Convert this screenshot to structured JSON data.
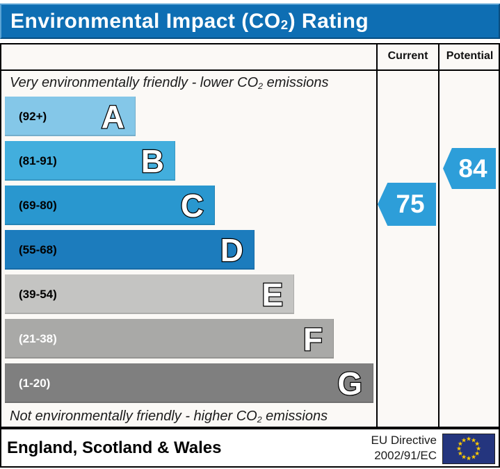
{
  "title": {
    "pre": "Environmental Impact (CO",
    "sub": "2",
    "post": ") Rating"
  },
  "header": {
    "current": "Current",
    "potential": "Potential"
  },
  "notes": {
    "top": {
      "pre": "Very environmentally friendly - lower CO",
      "sub": "2",
      "post": " emissions"
    },
    "bottom": {
      "pre": "Not environmentally friendly - higher CO",
      "sub": "2",
      "post": " emissions"
    }
  },
  "bands": [
    {
      "letter": "A",
      "range": "(92+)",
      "color": "#84c7e8",
      "range_color": "#000000"
    },
    {
      "letter": "B",
      "range": "(81-91)",
      "color": "#42aedd",
      "range_color": "#000000"
    },
    {
      "letter": "C",
      "range": "(69-80)",
      "color": "#2997cf",
      "range_color": "#000000"
    },
    {
      "letter": "D",
      "range": "(55-68)",
      "color": "#1c7cbd",
      "range_color": "#000000"
    },
    {
      "letter": "E",
      "range": "(39-54)",
      "color": "#c4c4c2",
      "range_color": "#000000"
    },
    {
      "letter": "F",
      "range": "(21-38)",
      "color": "#a9a9a7",
      "range_color": "#ffffff"
    },
    {
      "letter": "G",
      "range": "(1-20)",
      "color": "#7f7f7f",
      "range_color": "#ffffff"
    }
  ],
  "current": {
    "value": "75",
    "color": "#2d9ed9"
  },
  "potential": {
    "value": "84",
    "color": "#2d9ed9"
  },
  "footer": {
    "region": "England, Scotland & Wales",
    "directive_line1": "EU Directive",
    "directive_line2": "2002/91/EC",
    "star_char": "★",
    "flag_bg": "#24357e",
    "star_color": "#ffcc00"
  },
  "colors": {
    "title_bar": "#0e6eb3",
    "table_bg": "#fbf9f6",
    "border": "#000000"
  },
  "chart_data": {
    "type": "bar",
    "title": "Environmental Impact (CO2) Rating",
    "categories": [
      "A",
      "B",
      "C",
      "D",
      "E",
      "F",
      "G"
    ],
    "band_ranges": [
      "92+",
      "81-91",
      "69-80",
      "55-68",
      "39-54",
      "21-38",
      "1-20"
    ],
    "band_colors": [
      "#84c7e8",
      "#42aedd",
      "#2997cf",
      "#1c7cbd",
      "#c4c4c2",
      "#a9a9a7",
      "#7f7f7f"
    ],
    "bar_relative_lengths": [
      188,
      245,
      302,
      358,
      416,
      471,
      530
    ],
    "current": 75,
    "current_band": "C",
    "potential": 84,
    "potential_band": "B",
    "top_note": "Very environmentally friendly - lower CO2 emissions",
    "bottom_note": "Not environmentally friendly - higher CO2 emissions",
    "region": "England, Scotland & Wales",
    "directive": "EU Directive 2002/91/EC",
    "legend_position": "none",
    "grid": false
  }
}
